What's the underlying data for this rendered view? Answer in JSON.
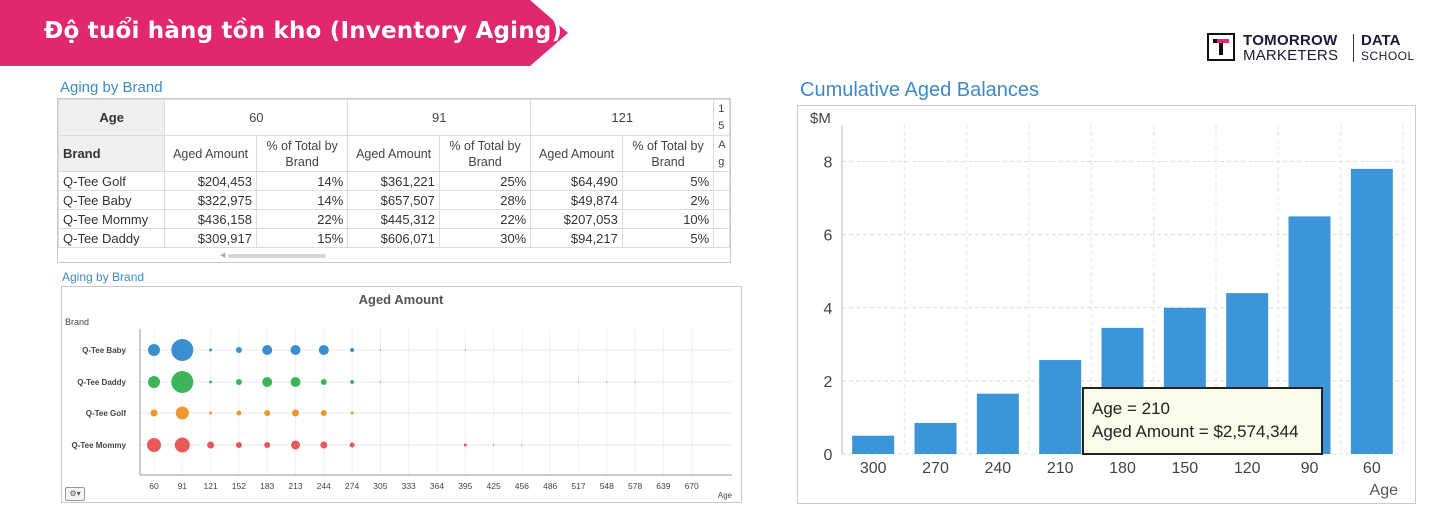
{
  "banner": {
    "title": "Độ tuổi hàng tồn kho (Inventory Aging)",
    "color": "#e0276f"
  },
  "logo": {
    "line1": "TOMORROW",
    "line2": "MARKETERS",
    "right1": "DATA",
    "right2": "SCHOOL"
  },
  "table": {
    "title": "Aging by Brand",
    "age_label": "Age",
    "brand_label": "Brand",
    "groups": [
      "60",
      "91",
      "121"
    ],
    "clipped_group": "1 5",
    "clipped_sub": "A g",
    "sub_headers": [
      "Aged Amount",
      "% of Total by Brand"
    ],
    "rows": [
      {
        "brand": "Q-Tee Golf",
        "cells": [
          "$204,453",
          "14%",
          "$361,221",
          "25%",
          "$64,490",
          "5%"
        ]
      },
      {
        "brand": "Q-Tee Baby",
        "cells": [
          "$322,975",
          "14%",
          "$657,507",
          "28%",
          "$49,874",
          "2%"
        ]
      },
      {
        "brand": "Q-Tee Mommy",
        "cells": [
          "$436,158",
          "22%",
          "$445,312",
          "22%",
          "$207,053",
          "10%"
        ]
      },
      {
        "brand": "Q-Tee Daddy",
        "cells": [
          "$309,917",
          "15%",
          "$606,071",
          "30%",
          "$94,217",
          "5%"
        ]
      }
    ]
  },
  "chart_data": [
    {
      "type": "scatter",
      "section_title": "Aging by Brand",
      "title": "Aged Amount",
      "xlabel": "Age",
      "ylabel": "Brand",
      "x_ticks": [
        "60",
        "91",
        "121",
        "152",
        "183",
        "213",
        "244",
        "274",
        "305",
        "333",
        "364",
        "395",
        "425",
        "456",
        "486",
        "517",
        "548",
        "578",
        "639",
        "670"
      ],
      "series": [
        {
          "name": "Q-Tee Baby",
          "color": "#3a8fd0",
          "sizes": [
            6,
            11,
            1.5,
            3,
            5,
            5,
            5,
            2,
            0.6,
            0,
            0,
            0.6,
            0,
            0,
            0,
            0,
            0,
            0,
            0,
            0
          ]
        },
        {
          "name": "Q-Tee Daddy",
          "color": "#3cb55a",
          "sizes": [
            6,
            11,
            1.5,
            3,
            5,
            5,
            3,
            2,
            0.6,
            0,
            0,
            0,
            0,
            0,
            0,
            0.6,
            0.6,
            0.6,
            0,
            0
          ]
        },
        {
          "name": "Q-Tee Golf",
          "color": "#f0962e",
          "sizes": [
            3.5,
            6.5,
            1.5,
            2.5,
            3,
            3.5,
            3,
            1.5,
            0.5,
            0,
            0,
            0,
            0,
            0,
            0,
            0,
            0,
            0,
            0,
            0
          ]
        },
        {
          "name": "Q-Tee Mommy",
          "color": "#e85a5a",
          "sizes": [
            7,
            7.5,
            3.5,
            3,
            3,
            4.5,
            3.5,
            2.5,
            0,
            0,
            0,
            1.5,
            0.8,
            0.6,
            0,
            0,
            0,
            0,
            0,
            0
          ]
        }
      ]
    },
    {
      "type": "bar",
      "title": "Cumulative Aged Balances",
      "ylabel": "$M",
      "xlabel": "Age",
      "categories": [
        "300",
        "270",
        "240",
        "210",
        "180",
        "150",
        "120",
        "90",
        "60"
      ],
      "values": [
        0.5,
        0.85,
        1.65,
        2.57,
        3.45,
        4.0,
        4.4,
        6.5,
        7.8
      ],
      "ylim": [
        0,
        9
      ],
      "y_ticks": [
        0,
        2,
        4,
        6,
        8
      ],
      "color": "#3b95d8",
      "grid": true
    }
  ],
  "tooltip": {
    "line1": "Age = 210",
    "line2": "Aged Amount = $2,574,344"
  }
}
